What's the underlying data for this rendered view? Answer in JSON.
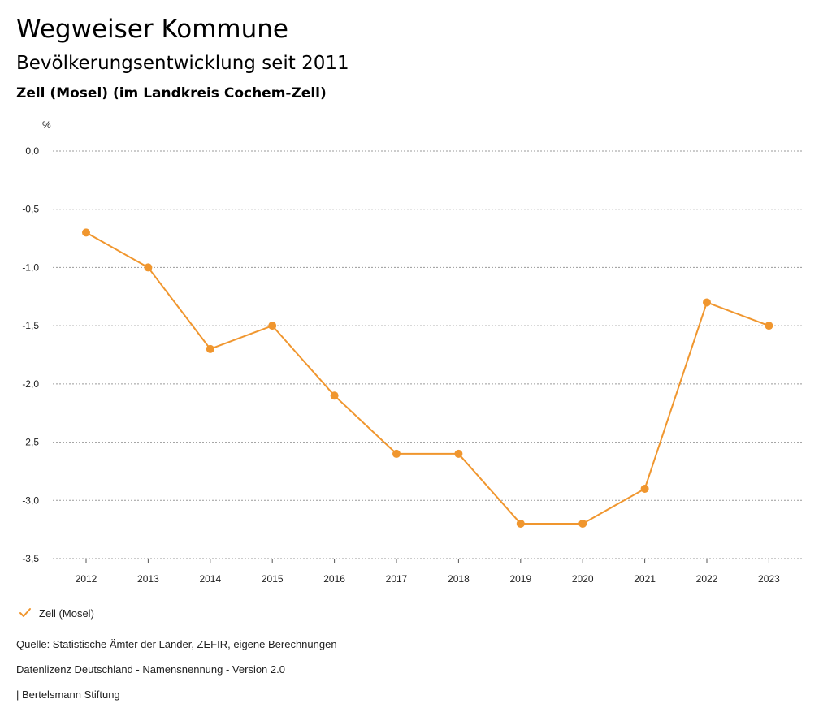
{
  "header": {
    "title": "Wegweiser Kommune",
    "subtitle": "Bevölkerungsentwicklung seit 2011",
    "region": "Zell (Mosel) (im Landkreis Cochem-Zell)"
  },
  "chart_data": {
    "type": "line",
    "unit_label": "%",
    "x": [
      "2012",
      "2013",
      "2014",
      "2015",
      "2016",
      "2017",
      "2018",
      "2019",
      "2020",
      "2021",
      "2022",
      "2023"
    ],
    "series": [
      {
        "name": "Zell (Mosel)",
        "color": "#f0962e",
        "values": [
          -0.7,
          -1.0,
          -1.7,
          -1.5,
          -2.1,
          -2.6,
          -2.6,
          -3.2,
          -3.2,
          -2.9,
          -1.3,
          -1.5
        ]
      }
    ],
    "yticks": [
      0.0,
      -0.5,
      -1.0,
      -1.5,
      -2.0,
      -2.5,
      -3.0,
      -3.5
    ],
    "ytick_labels": [
      "0,0",
      "-0,5",
      "-1,0",
      "-1,5",
      "-2,0",
      "-2,5",
      "-3,0",
      "-3,5"
    ],
    "ylim": [
      -3.5,
      0.0
    ],
    "grid": true,
    "legend_position": "bottom-left"
  },
  "legend": {
    "label": "Zell (Mosel)",
    "icon": "check-icon"
  },
  "footer": {
    "source": "Quelle: Statistische Ämter der Länder, ZEFIR, eigene Berechnungen",
    "license": "Datenlizenz Deutschland - Namensnennung - Version 2.0",
    "publisher": "| Bertelsmann Stiftung"
  }
}
